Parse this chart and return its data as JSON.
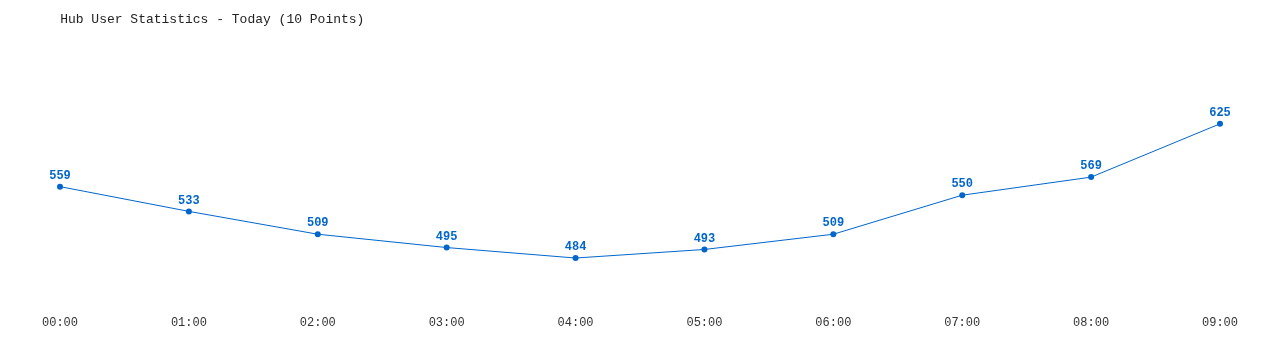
{
  "chart_data": {
    "type": "line",
    "title": "Hub User Statistics - Today (10 Points)",
    "categories": [
      "00:00",
      "01:00",
      "02:00",
      "03:00",
      "04:00",
      "05:00",
      "06:00",
      "07:00",
      "08:00",
      "09:00"
    ],
    "values": [
      559,
      533,
      509,
      495,
      484,
      493,
      509,
      550,
      569,
      625
    ],
    "color": "#0066cc",
    "marker": "circle",
    "line_style": "solid",
    "data_labels": true,
    "tick_labels": "x"
  }
}
